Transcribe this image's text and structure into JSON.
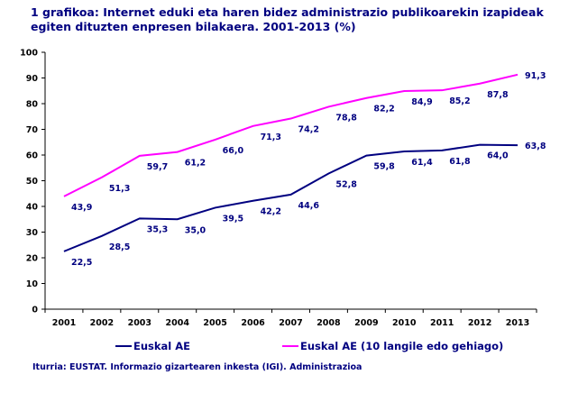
{
  "chart_data": {
    "type": "line",
    "title": "1 grafikoa: Internet eduki eta haren bidez administrazio publikoarekin izapideak egiten dituzten enpresen bilakaera. 2001-2013 (%)",
    "categories": [
      "2001",
      "2002",
      "2003",
      "2004",
      "2005",
      "2006",
      "2007",
      "2008",
      "2009",
      "2010",
      "2011",
      "2012",
      "2013"
    ],
    "ylim": [
      0,
      100
    ],
    "yticks": [
      0,
      10,
      20,
      30,
      40,
      50,
      60,
      70,
      80,
      90,
      100
    ],
    "grid": false,
    "legend": "bottom",
    "series": [
      {
        "name": "Euskal AE",
        "color": "#000080",
        "values": [
          22.5,
          28.5,
          35.3,
          35.0,
          39.5,
          42.2,
          44.6,
          52.8,
          59.8,
          61.4,
          61.8,
          64.0,
          63.8
        ]
      },
      {
        "name": "Euskal AE (10 langile edo gehiago)",
        "color": "#FF00FF",
        "values": [
          43.9,
          51.3,
          59.7,
          61.2,
          66.0,
          71.3,
          74.2,
          78.8,
          82.2,
          84.9,
          85.2,
          87.8,
          91.3
        ]
      }
    ],
    "source": "Iturria: EUSTAT. Informazio gizartearen inkesta (IGI). Administrazioa"
  }
}
